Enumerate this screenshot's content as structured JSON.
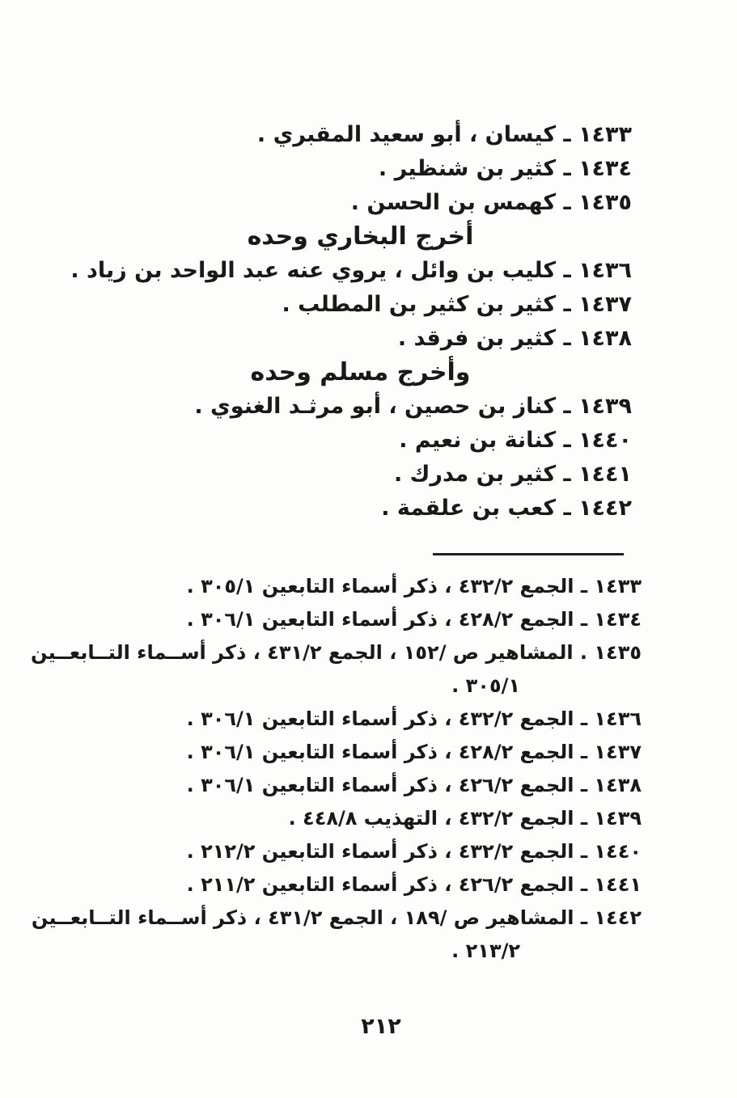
{
  "colors": {
    "paper": "#fdfdfb",
    "ink": "#1b1915"
  },
  "main": {
    "entries": [
      {
        "kind": "item",
        "text": "١٤٣٣ ـ كيسان ، أبو سعيد المقبري ."
      },
      {
        "kind": "item",
        "text": "١٤٣٤ ـ كثير بن شنظير ."
      },
      {
        "kind": "item",
        "text": "١٤٣٥ ـ كهمس بن الحسن ."
      },
      {
        "kind": "heading",
        "text": "أخرج البخاري وحده"
      },
      {
        "kind": "item",
        "text": "١٤٣٦ ـ كليب بن وائل ، يروي عنه عبد الواحد بن زياد ."
      },
      {
        "kind": "item",
        "text": "١٤٣٧ ـ كثير بن كثير بن المطلب ."
      },
      {
        "kind": "item",
        "text": "١٤٣٨ ـ كثير بن فرقد ."
      },
      {
        "kind": "heading",
        "text": "وأخرج مسلم وحده"
      },
      {
        "kind": "item",
        "text": "١٤٣٩ ـ كناز بن حصين ، أبو مرثـد الغنوي ."
      },
      {
        "kind": "item",
        "text": "١٤٤٠ ـ كنانة بن نعيم ."
      },
      {
        "kind": "item",
        "text": "١٤٤١ ـ كثير بن مدرك ."
      },
      {
        "kind": "item",
        "text": "١٤٤٢ ـ كعب بن علقمة ."
      }
    ]
  },
  "footnotes": {
    "items": [
      {
        "lines": [
          "١٤٣٣ ـ الجمع ٤٣٢/٢ ، ذكر أسماء التابعين ٣٠٥/١ ."
        ]
      },
      {
        "lines": [
          "١٤٣٤ ـ الجمع ٤٢٨/٢ ، ذكر أسماء التابعين ٣٠٦/١ ."
        ]
      },
      {
        "lines": [
          "١٤٣٥ . المشاهير ص /١٥٢ ، الجمع ٤٣١/٢ ، ذكر أســماء التــابعــين",
          "٣٠٥/١ ."
        ]
      },
      {
        "lines": [
          "١٤٣٦ ـ الجمع ٤٣٢/٢ ، ذكر أسماء التابعين ٣٠٦/١ ."
        ]
      },
      {
        "lines": [
          "١٤٣٧ ـ الجمع ٤٢٨/٢ ، ذكر أسماء التابعين ٣٠٦/١ ."
        ]
      },
      {
        "lines": [
          "١٤٣٨ ـ الجمع ٤٢٦/٢ ، ذكر أسماء التابعين ٣٠٦/١ ."
        ]
      },
      {
        "lines": [
          "١٤٣٩ ـ الجمع ٤٣٢/٢ ، التهذيب ٤٤٨/٨ ."
        ]
      },
      {
        "lines": [
          "١٤٤٠ ـ الجمع ٤٣٢/٢ ، ذكر أسماء التابعين ٢١٢/٢ ."
        ]
      },
      {
        "lines": [
          "١٤٤١ ـ الجمع ٤٢٦/٢ ، ذكر أسماء التابعين ٢١١/٢ ."
        ]
      },
      {
        "lines": [
          "١٤٤٢ ـ المشاهير ص /١٨٩ ، الجمع ٤٣١/٢ ، ذكر أســماء التــابعــين",
          "٢١٣/٢ ."
        ]
      }
    ]
  },
  "page": {
    "number": "٢١٢"
  }
}
